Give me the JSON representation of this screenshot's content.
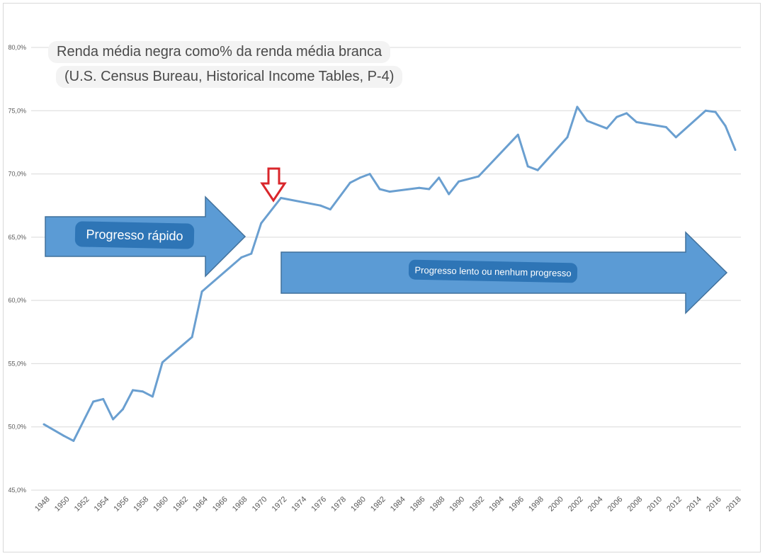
{
  "chart_data": {
    "type": "line",
    "title": "Renda média negra como% da renda média branca",
    "subtitle": "(U.S. Census Bureau, Historical Income Tables, P-4)",
    "xlabel": "",
    "ylabel": "",
    "xlim": [
      1948,
      2018
    ],
    "ylim": [
      45,
      80
    ],
    "y_tick_labels": [
      "45,0%",
      "50,0%",
      "55,0%",
      "60,0%",
      "65,0%",
      "70,0%",
      "75,0%",
      "80,0%"
    ],
    "y_ticks": [
      45,
      50,
      55,
      60,
      65,
      70,
      75,
      80
    ],
    "x_tick_labels": [
      "1948",
      "1950",
      "1952",
      "1954",
      "1956",
      "1958",
      "1960",
      "1962",
      "1964",
      "1966",
      "1968",
      "1970",
      "1972",
      "1974",
      "1976",
      "1978",
      "1980",
      "1982",
      "1984",
      "1986",
      "1988",
      "1990",
      "1992",
      "1994",
      "1996",
      "1998",
      "2000",
      "2002",
      "2004",
      "2006",
      "2008",
      "2010",
      "2012",
      "2014",
      "2016",
      "2018"
    ],
    "grid": true,
    "line_color": "#6a9fd0",
    "series": [
      {
        "x": [
          1948,
          1950,
          1951,
          1953,
          1954,
          1955,
          1956,
          1957,
          1958,
          1959,
          1960,
          1963,
          1964,
          1968,
          1969,
          1970,
          1972,
          1976,
          1977,
          1979,
          1980,
          1981,
          1982,
          1983,
          1986,
          1987,
          1988,
          1989,
          1990,
          1992,
          1996,
          1997,
          1998,
          2001,
          2002,
          2003,
          2005,
          2006,
          2007,
          2008,
          2011,
          2012,
          2015,
          2016,
          2017,
          2018
        ],
        "values": [
          50.2,
          49.3,
          48.9,
          52.0,
          52.2,
          50.6,
          51.4,
          52.9,
          52.8,
          52.4,
          55.1,
          57.1,
          60.7,
          63.4,
          63.7,
          66.1,
          68.1,
          67.5,
          67.2,
          69.3,
          69.7,
          70.0,
          68.8,
          68.6,
          68.9,
          68.8,
          69.7,
          68.4,
          69.4,
          69.8,
          73.1,
          70.6,
          70.3,
          72.9,
          75.3,
          74.2,
          73.6,
          74.5,
          74.8,
          74.1,
          73.7,
          72.9,
          75.0,
          74.9,
          73.8,
          71.9
        ]
      }
    ],
    "annotations": [
      {
        "text": "Progresso rápido",
        "type": "arrow",
        "color": "#5b9bd5"
      },
      {
        "text": "Progresso lento ou nenhum progresso",
        "type": "arrow",
        "color": "#5b9bd5"
      },
      {
        "text": "",
        "type": "down-arrow-marker",
        "year": 1971,
        "color": "#d9262b"
      }
    ]
  }
}
